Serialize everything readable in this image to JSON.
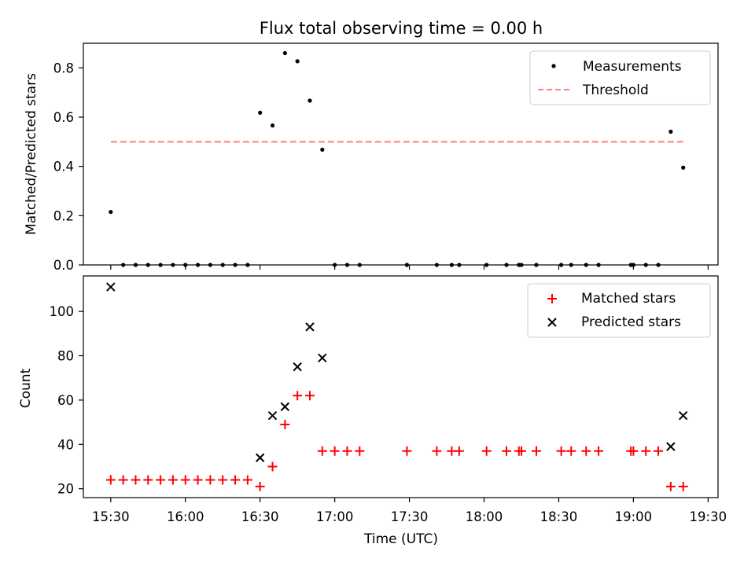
{
  "chart_data": [
    {
      "type": "scatter",
      "title": "Flux total observing time = 0.00 h",
      "xlabel": "",
      "ylabel": "Matched/Predicted stars",
      "ylim": [
        0,
        0.9
      ],
      "yticks": [
        0.0,
        0.2,
        0.4,
        0.6,
        0.8
      ],
      "legend_position": "upper right",
      "series": [
        {
          "name": "Measurements",
          "style": "dot",
          "color": "#000000",
          "points": [
            [
              "15:30",
              0.215
            ],
            [
              "15:35",
              0.0
            ],
            [
              "15:40",
              0.0
            ],
            [
              "15:45",
              0.0
            ],
            [
              "15:50",
              0.0
            ],
            [
              "15:55",
              0.0
            ],
            [
              "16:00",
              0.0
            ],
            [
              "16:05",
              0.0
            ],
            [
              "16:10",
              0.0
            ],
            [
              "16:15",
              0.0
            ],
            [
              "16:20",
              0.0
            ],
            [
              "16:25",
              0.0
            ],
            [
              "16:30",
              0.618
            ],
            [
              "16:35",
              0.566
            ],
            [
              "16:40",
              0.86
            ],
            [
              "16:45",
              0.827
            ],
            [
              "16:50",
              0.667
            ],
            [
              "16:55",
              0.468
            ],
            [
              "17:00",
              0.0
            ],
            [
              "17:05",
              0.0
            ],
            [
              "17:10",
              0.0
            ],
            [
              "17:29",
              0.0
            ],
            [
              "17:41",
              0.0
            ],
            [
              "17:47",
              0.0
            ],
            [
              "17:50",
              0.0
            ],
            [
              "18:01",
              0.0
            ],
            [
              "18:09",
              0.0
            ],
            [
              "18:14",
              0.0
            ],
            [
              "18:15",
              0.0
            ],
            [
              "18:21",
              0.0
            ],
            [
              "18:31",
              0.0
            ],
            [
              "18:35",
              0.0
            ],
            [
              "18:41",
              0.0
            ],
            [
              "18:46",
              0.0
            ],
            [
              "18:59",
              0.0
            ],
            [
              "19:00",
              0.0
            ],
            [
              "19:05",
              0.0
            ],
            [
              "19:10",
              0.0
            ],
            [
              "19:15",
              0.541
            ],
            [
              "19:20",
              0.395
            ]
          ]
        },
        {
          "name": "Threshold",
          "style": "dashed-line",
          "color": "#ff7f7f",
          "points": [
            [
              "15:30",
              0.5
            ],
            [
              "19:20",
              0.5
            ]
          ]
        }
      ]
    },
    {
      "type": "scatter",
      "title": "",
      "xlabel": "Time (UTC)",
      "ylabel": "Count",
      "ylim": [
        16,
        116
      ],
      "yticks": [
        20,
        40,
        60,
        80,
        100
      ],
      "xlim": [
        "15:19",
        "19:34"
      ],
      "xticks": [
        "15:30",
        "16:00",
        "16:30",
        "17:00",
        "17:30",
        "18:00",
        "18:30",
        "19:00",
        "19:30"
      ],
      "legend_position": "upper right",
      "series": [
        {
          "name": "Matched stars",
          "style": "plus",
          "color": "#ff0000",
          "points": [
            [
              "15:30",
              24
            ],
            [
              "15:35",
              24
            ],
            [
              "15:40",
              24
            ],
            [
              "15:45",
              24
            ],
            [
              "15:50",
              24
            ],
            [
              "15:55",
              24
            ],
            [
              "16:00",
              24
            ],
            [
              "16:05",
              24
            ],
            [
              "16:10",
              24
            ],
            [
              "16:15",
              24
            ],
            [
              "16:20",
              24
            ],
            [
              "16:25",
              24
            ],
            [
              "16:30",
              21
            ],
            [
              "16:35",
              30
            ],
            [
              "16:40",
              49
            ],
            [
              "16:45",
              62
            ],
            [
              "16:50",
              62
            ],
            [
              "16:55",
              37
            ],
            [
              "17:00",
              37
            ],
            [
              "17:05",
              37
            ],
            [
              "17:10",
              37
            ],
            [
              "17:29",
              37
            ],
            [
              "17:41",
              37
            ],
            [
              "17:47",
              37
            ],
            [
              "17:50",
              37
            ],
            [
              "18:01",
              37
            ],
            [
              "18:09",
              37
            ],
            [
              "18:14",
              37
            ],
            [
              "18:15",
              37
            ],
            [
              "18:21",
              37
            ],
            [
              "18:31",
              37
            ],
            [
              "18:35",
              37
            ],
            [
              "18:41",
              37
            ],
            [
              "18:46",
              37
            ],
            [
              "18:59",
              37
            ],
            [
              "19:00",
              37
            ],
            [
              "19:05",
              37
            ],
            [
              "19:10",
              37
            ],
            [
              "19:15",
              21
            ],
            [
              "19:20",
              21
            ]
          ]
        },
        {
          "name": "Predicted stars",
          "style": "x",
          "color": "#000000",
          "points": [
            [
              "15:30",
              111
            ],
            [
              "16:30",
              34
            ],
            [
              "16:35",
              53
            ],
            [
              "16:40",
              57
            ],
            [
              "16:45",
              75
            ],
            [
              "16:50",
              93
            ],
            [
              "16:55",
              79
            ],
            [
              "19:15",
              39
            ],
            [
              "19:20",
              53
            ]
          ]
        }
      ]
    }
  ]
}
